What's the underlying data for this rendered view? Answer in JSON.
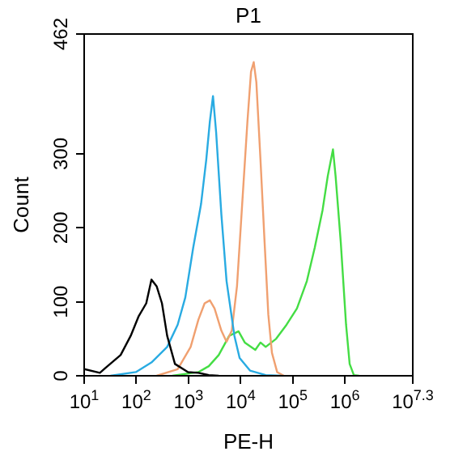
{
  "chart_data": {
    "type": "line",
    "title": "P1",
    "xlabel": "PE-H",
    "ylabel": "Count",
    "log": "x",
    "legend": false,
    "grid": false,
    "marker": "none",
    "line_style": "solid",
    "xlim": [
      10,
      19952623
    ],
    "xticks": [
      {
        "value": 10,
        "label": "10$^{1}$"
      },
      {
        "value": 100,
        "label": "10$^{2}$"
      },
      {
        "value": 1000,
        "label": "10$^{3}$"
      },
      {
        "value": 10000,
        "label": "10$^{4}$"
      },
      {
        "value": 100000,
        "label": "10$^{5}$"
      },
      {
        "value": 1000000,
        "label": "10$^{6}$"
      },
      {
        "value": 19952623,
        "label": "10$^{7.3}$"
      }
    ],
    "ylim": [
      0,
      462
    ],
    "yticks": [
      0,
      100,
      200,
      300,
      462
    ],
    "series": [
      {
        "color": "#000000",
        "x": [
          10,
          20,
          25,
          50,
          78,
          110,
          155,
          195,
          245,
          310,
          390,
          550,
          980,
          1550,
          2450,
          3800
        ],
        "values": [
          9,
          4,
          10,
          28,
          54,
          80,
          98,
          130,
          121,
          98,
          54,
          16,
          5,
          4,
          1,
          0
        ]
      },
      {
        "color": "#29abe2",
        "x": [
          32,
          98,
          195,
          390,
          620,
          870,
          1230,
          1740,
          2190,
          2570,
          2950,
          3390,
          4270,
          5370,
          7590,
          9550,
          15100,
          30200,
          60300
        ],
        "values": [
          0,
          5,
          18,
          39,
          69,
          106,
          173,
          232,
          292,
          344,
          378,
          329,
          218,
          128,
          54,
          24,
          7,
          1,
          0
        ]
      },
      {
        "color": "#f0a070",
        "x": [
          245,
          620,
          1100,
          1550,
          2040,
          2570,
          3160,
          4270,
          5370,
          6760,
          8510,
          10700,
          13500,
          15800,
          17800,
          20000,
          24000,
          28800,
          33900,
          39800,
          50100,
          67600
        ],
        "values": [
          0,
          9,
          39,
          76,
          98,
          102,
          91,
          61,
          46,
          61,
          121,
          232,
          344,
          411,
          424,
          397,
          292,
          180,
          83,
          31,
          5,
          0
        ]
      },
      {
        "color": "#44dd44",
        "x": [
          490,
          1550,
          2450,
          3800,
          6030,
          9120,
          12000,
          19100,
          24000,
          30200,
          47900,
          75900,
          120000,
          186000,
          263000,
          372000,
          468000,
          589000,
          661000,
          832000,
          1050000,
          1230000,
          1480000,
          1860000
        ],
        "values": [
          0,
          5,
          13,
          28,
          54,
          60,
          45,
          35,
          45,
          39,
          50,
          69,
          91,
          128,
          173,
          224,
          270,
          306,
          270,
          180,
          69,
          16,
          1,
          0
        ]
      }
    ]
  }
}
